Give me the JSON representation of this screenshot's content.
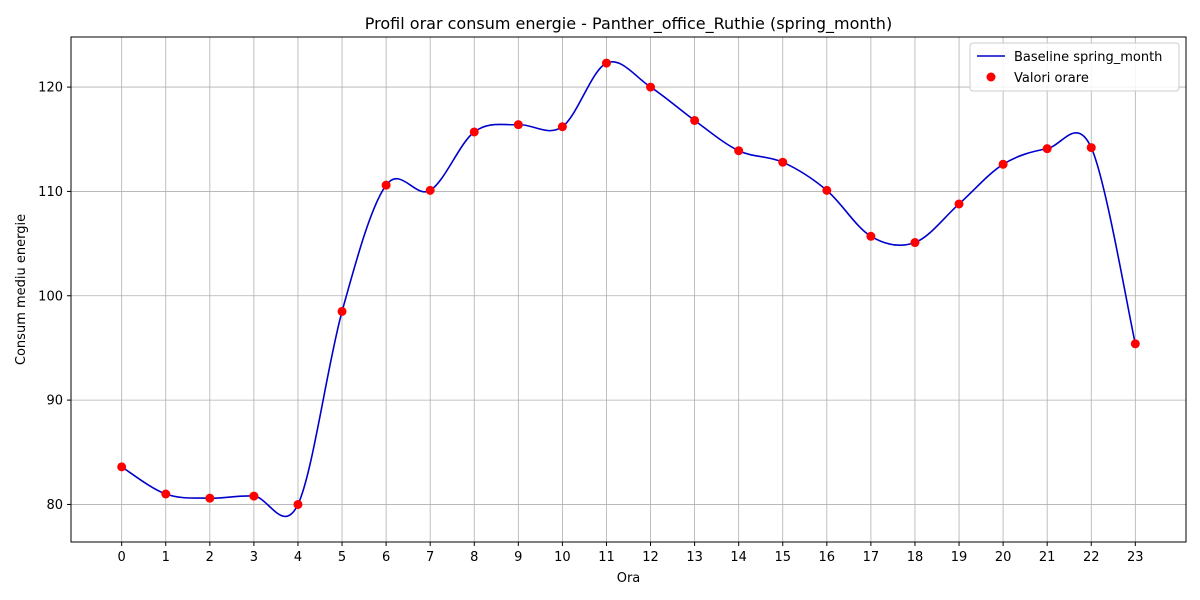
{
  "chart_data": {
    "type": "line",
    "title": "Profil orar consum energie - Panther_office_Ruthie (spring_month)",
    "xlabel": "Ora",
    "ylabel": "Consum mediu energie",
    "x": [
      0,
      1,
      2,
      3,
      4,
      5,
      6,
      7,
      8,
      9,
      10,
      11,
      12,
      13,
      14,
      15,
      16,
      17,
      18,
      19,
      20,
      21,
      22,
      23
    ],
    "xlim": [
      -1.15,
      24.15
    ],
    "ylim": [
      76.4,
      124.8
    ],
    "yticks": [
      80,
      90,
      100,
      110,
      120
    ],
    "grid": true,
    "legend_position": "top-right",
    "series": [
      {
        "name": "Baseline spring_month",
        "kind": "line",
        "color": "#0000cc",
        "values": [
          83.6,
          81.0,
          80.6,
          80.8,
          80.0,
          98.5,
          110.6,
          110.1,
          115.7,
          116.4,
          116.2,
          122.3,
          120.0,
          116.8,
          113.9,
          112.8,
          110.1,
          105.7,
          105.1,
          108.8,
          112.6,
          114.1,
          114.2,
          95.4
        ]
      },
      {
        "name": "Valori orare",
        "kind": "scatter",
        "color": "#ff0000",
        "values": [
          83.6,
          81.0,
          80.6,
          80.8,
          80.0,
          98.5,
          110.6,
          110.1,
          115.7,
          116.4,
          116.2,
          122.3,
          120.0,
          116.8,
          113.9,
          112.8,
          110.1,
          105.7,
          105.1,
          108.8,
          112.6,
          114.1,
          114.2,
          95.4
        ]
      }
    ]
  }
}
